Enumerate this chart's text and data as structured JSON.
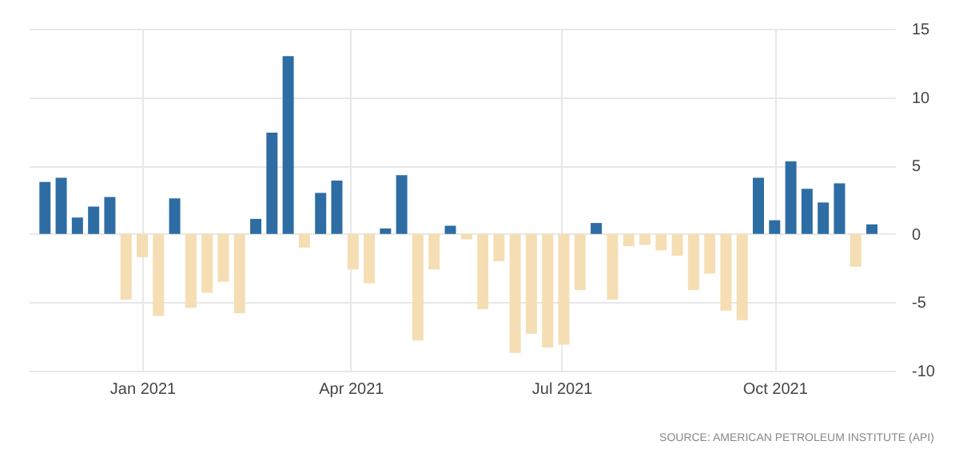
{
  "chart_data": {
    "type": "bar",
    "x": [
      "2020-11-20",
      "2020-11-27",
      "2020-12-04",
      "2020-12-11",
      "2020-12-18",
      "2020-12-25",
      "2021-01-01",
      "2021-01-08",
      "2021-01-15",
      "2021-01-22",
      "2021-01-29",
      "2021-02-05",
      "2021-02-12",
      "2021-02-19",
      "2021-02-26",
      "2021-03-05",
      "2021-03-12",
      "2021-03-19",
      "2021-03-26",
      "2021-04-02",
      "2021-04-09",
      "2021-04-16",
      "2021-04-23",
      "2021-04-30",
      "2021-05-07",
      "2021-05-14",
      "2021-05-21",
      "2021-05-28",
      "2021-06-04",
      "2021-06-11",
      "2021-06-18",
      "2021-06-25",
      "2021-07-02",
      "2021-07-09",
      "2021-07-16",
      "2021-07-23",
      "2021-07-30",
      "2021-08-06",
      "2021-08-13",
      "2021-08-20",
      "2021-08-27",
      "2021-09-03",
      "2021-09-10",
      "2021-09-17",
      "2021-09-24",
      "2021-10-01",
      "2021-10-08",
      "2021-10-15",
      "2021-10-22",
      "2021-10-29",
      "2021-11-05",
      "2021-11-12"
    ],
    "values": [
      3.8,
      4.1,
      1.2,
      2.0,
      2.7,
      -4.8,
      -1.7,
      -6.0,
      2.6,
      -5.4,
      -4.3,
      -3.5,
      -5.8,
      1.1,
      7.4,
      13.0,
      -1.0,
      3.0,
      3.9,
      -2.6,
      -3.6,
      0.4,
      4.3,
      -7.8,
      -2.6,
      0.6,
      -0.4,
      -5.5,
      -2.0,
      -8.7,
      -7.3,
      -8.3,
      -8.1,
      -4.1,
      0.8,
      -4.8,
      -0.9,
      -0.8,
      -1.2,
      -1.6,
      -4.1,
      -2.9,
      -5.6,
      -6.3,
      4.1,
      1.0,
      5.3,
      3.3,
      2.3,
      3.7,
      -2.4,
      0.7
    ],
    "colors": [
      "#2e6da4",
      "#2e6da4",
      "#2e6da4",
      "#2e6da4",
      "#2e6da4",
      "#f5deb3",
      "#f5deb3",
      "#f5deb3",
      "#2e6da4",
      "#f5deb3",
      "#f5deb3",
      "#f5deb3",
      "#f5deb3",
      "#2e6da4",
      "#2e6da4",
      "#2e6da4",
      "#f5deb3",
      "#2e6da4",
      "#2e6da4",
      "#f5deb3",
      "#f5deb3",
      "#2e6da4",
      "#2e6da4",
      "#f5deb3",
      "#f5deb3",
      "#2e6da4",
      "#f5deb3",
      "#f5deb3",
      "#f5deb3",
      "#f5deb3",
      "#f5deb3",
      "#f5deb3",
      "#f5deb3",
      "#f5deb3",
      "#2e6da4",
      "#f5deb3",
      "#f5deb3",
      "#f5deb3",
      "#f5deb3",
      "#f5deb3",
      "#f5deb3",
      "#f5deb3",
      "#f5deb3",
      "#f5deb3",
      "#2e6da4",
      "#2e6da4",
      "#2e6da4",
      "#2e6da4",
      "#2e6da4",
      "#2e6da4",
      "#f5deb3",
      "#2e6da4"
    ],
    "xlim": [
      "2020-11-13",
      "2021-11-22"
    ],
    "xticks": [
      {
        "value": "2021-01-01",
        "label": "Jan 2021"
      },
      {
        "value": "2021-04-01",
        "label": "Apr 2021"
      },
      {
        "value": "2021-07-01",
        "label": "Jul 2021"
      },
      {
        "value": "2021-10-01",
        "label": "Oct 2021"
      }
    ],
    "ylim": [
      -10,
      15
    ],
    "yticks": [
      -10,
      -5,
      0,
      5,
      10,
      15
    ],
    "grid": true,
    "annotations": [
      "SOURCE: AMERICAN PETROLEUM INSTITUTE (API)"
    ]
  }
}
